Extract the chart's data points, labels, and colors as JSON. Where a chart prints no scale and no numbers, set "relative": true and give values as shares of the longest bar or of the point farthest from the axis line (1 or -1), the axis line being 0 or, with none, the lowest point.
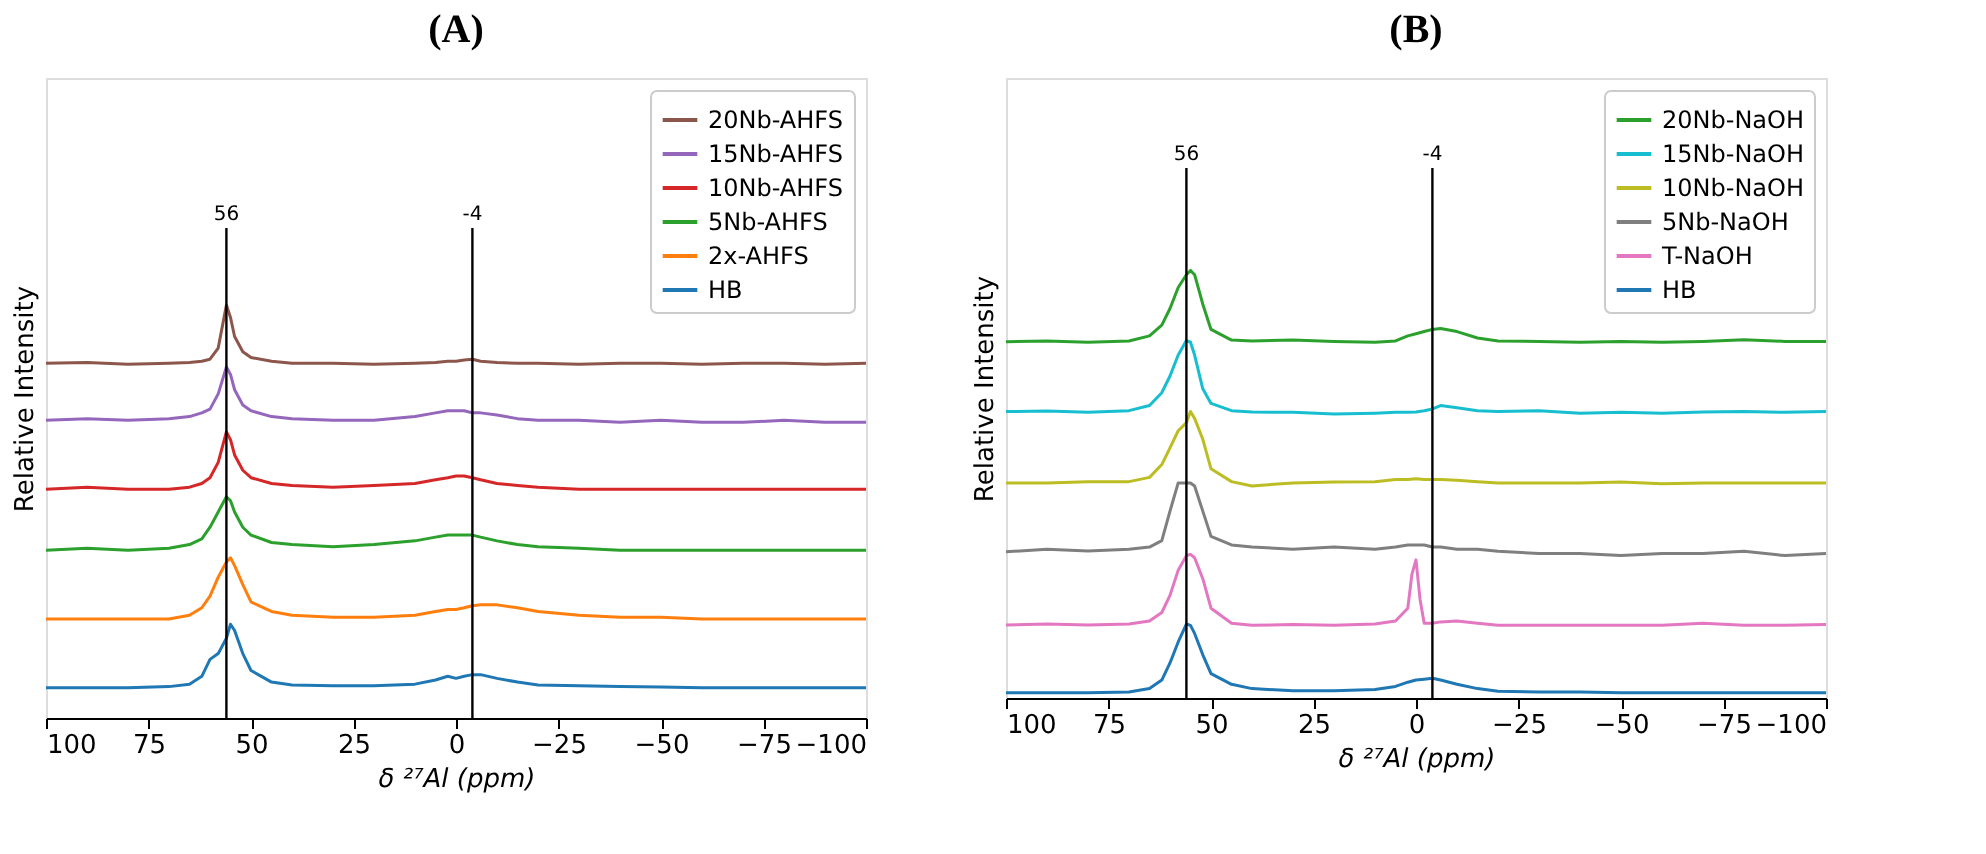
{
  "chart_data": [
    {
      "type": "line",
      "title": "(A)",
      "xlabel": "δ ²⁷Al (ppm)",
      "ylabel": "Relative Intensity",
      "relative": true,
      "legend": "top right",
      "grid": false,
      "xlim": [
        100,
        -100
      ],
      "xticks": [
        100,
        75,
        50,
        25,
        0,
        -25,
        -50,
        -75,
        -100
      ],
      "x": [
        100,
        90,
        80,
        70,
        65,
        62,
        60,
        58,
        56,
        55,
        54,
        52,
        50,
        45,
        40,
        30,
        20,
        10,
        5,
        2,
        0,
        -2,
        -4,
        -6,
        -10,
        -15,
        -20,
        -30,
        -40,
        -50,
        -60,
        -70,
        -80,
        -90,
        -100
      ],
      "ref_lines": [
        {
          "axis": "x",
          "value": 56,
          "label": "56",
          "color": "#000000"
        },
        {
          "axis": "x",
          "value": -4,
          "label": "-4",
          "color": "#000000"
        }
      ],
      "series": [
        {
          "name": "20Nb-AHFS",
          "color": "#8c564b",
          "values": [
            0.859,
            0.861,
            0.857,
            0.859,
            0.861,
            0.864,
            0.869,
            0.896,
            1.0,
            0.97,
            0.924,
            0.887,
            0.873,
            0.864,
            0.859,
            0.859,
            0.857,
            0.859,
            0.861,
            0.864,
            0.864,
            0.867,
            0.869,
            0.864,
            0.861,
            0.859,
            0.859,
            0.857,
            0.859,
            0.859,
            0.857,
            0.859,
            0.859,
            0.857,
            0.859
          ]
        },
        {
          "name": "15Nb-AHFS",
          "color": "#9467bd",
          "values": [
            0.721,
            0.725,
            0.721,
            0.725,
            0.73,
            0.739,
            0.748,
            0.785,
            0.85,
            0.832,
            0.795,
            0.758,
            0.744,
            0.73,
            0.725,
            0.721,
            0.721,
            0.73,
            0.739,
            0.744,
            0.744,
            0.744,
            0.739,
            0.739,
            0.734,
            0.725,
            0.721,
            0.721,
            0.716,
            0.721,
            0.716,
            0.716,
            0.721,
            0.716,
            0.716
          ]
        },
        {
          "name": "10Nb-AHFS",
          "color": "#d62728",
          "values": [
            0.554,
            0.559,
            0.554,
            0.554,
            0.559,
            0.568,
            0.582,
            0.619,
            0.693,
            0.674,
            0.637,
            0.6,
            0.582,
            0.568,
            0.563,
            0.559,
            0.563,
            0.568,
            0.577,
            0.582,
            0.586,
            0.586,
            0.582,
            0.577,
            0.568,
            0.563,
            0.559,
            0.554,
            0.554,
            0.554,
            0.554,
            0.554,
            0.554,
            0.554,
            0.554
          ]
        },
        {
          "name": "5Nb-AHFS",
          "color": "#2ca02c",
          "values": [
            0.406,
            0.411,
            0.406,
            0.411,
            0.42,
            0.434,
            0.462,
            0.499,
            0.536,
            0.526,
            0.499,
            0.462,
            0.443,
            0.425,
            0.42,
            0.415,
            0.42,
            0.429,
            0.438,
            0.443,
            0.443,
            0.443,
            0.443,
            0.438,
            0.429,
            0.42,
            0.415,
            0.411,
            0.406,
            0.406,
            0.406,
            0.406,
            0.406,
            0.406,
            0.406
          ]
        },
        {
          "name": "2x-AHFS",
          "color": "#ff7f0e",
          "values": [
            0.24,
            0.24,
            0.24,
            0.24,
            0.249,
            0.267,
            0.295,
            0.341,
            0.378,
            0.388,
            0.369,
            0.323,
            0.281,
            0.258,
            0.249,
            0.244,
            0.244,
            0.249,
            0.258,
            0.263,
            0.263,
            0.267,
            0.272,
            0.274,
            0.274,
            0.267,
            0.258,
            0.249,
            0.244,
            0.244,
            0.24,
            0.24,
            0.24,
            0.24,
            0.24
          ]
        },
        {
          "name": "HB",
          "color": "#1f77b4",
          "values": [
            0.073,
            0.073,
            0.073,
            0.076,
            0.082,
            0.101,
            0.142,
            0.156,
            0.193,
            0.227,
            0.212,
            0.156,
            0.115,
            0.087,
            0.08,
            0.078,
            0.078,
            0.082,
            0.092,
            0.101,
            0.096,
            0.101,
            0.105,
            0.105,
            0.096,
            0.087,
            0.08,
            0.078,
            0.076,
            0.075,
            0.073,
            0.073,
            0.073,
            0.073,
            0.073
          ]
        }
      ]
    },
    {
      "type": "line",
      "title": "(B)",
      "xlabel": "δ ²⁷Al (ppm)",
      "ylabel": "Relative Intensity",
      "relative": true,
      "legend": "top right",
      "grid": false,
      "xlim": [
        100,
        -100
      ],
      "xticks": [
        100,
        75,
        50,
        25,
        0,
        -25,
        -50,
        -75,
        -100
      ],
      "x": [
        100,
        90,
        80,
        70,
        65,
        62,
        60,
        58,
        56,
        55,
        54,
        52,
        50,
        45,
        40,
        30,
        20,
        10,
        5,
        2,
        0,
        -2,
        -4,
        -6,
        -10,
        -15,
        -20,
        -30,
        -40,
        -50,
        -60,
        -70,
        -80,
        -90,
        -100
      ],
      "ref_lines": [
        {
          "axis": "x",
          "value": 56,
          "label": "56",
          "color": "#000000"
        },
        {
          "axis": "x",
          "value": -4,
          "label": "-4",
          "color": "#000000"
        }
      ],
      "series": [
        {
          "name": "20Nb-NaOH",
          "color": "#2ca02c",
          "values": [
            0.833,
            0.835,
            0.832,
            0.835,
            0.847,
            0.872,
            0.911,
            0.96,
            0.99,
            1.0,
            0.99,
            0.921,
            0.862,
            0.837,
            0.835,
            0.837,
            0.834,
            0.832,
            0.835,
            0.847,
            0.852,
            0.857,
            0.862,
            0.864,
            0.857,
            0.842,
            0.835,
            0.834,
            0.832,
            0.834,
            0.832,
            0.834,
            0.838,
            0.834,
            0.834
          ]
        },
        {
          "name": "15Nb-NaOH",
          "color": "#17becf",
          "values": [
            0.67,
            0.671,
            0.668,
            0.672,
            0.684,
            0.714,
            0.753,
            0.802,
            0.836,
            0.832,
            0.802,
            0.723,
            0.689,
            0.672,
            0.669,
            0.668,
            0.664,
            0.666,
            0.668,
            0.668,
            0.669,
            0.672,
            0.676,
            0.684,
            0.679,
            0.672,
            0.67,
            0.672,
            0.666,
            0.668,
            0.666,
            0.669,
            0.67,
            0.668,
            0.67
          ]
        },
        {
          "name": "10Nb-NaOH",
          "color": "#bcbd22",
          "values": [
            0.503,
            0.503,
            0.506,
            0.506,
            0.516,
            0.546,
            0.585,
            0.625,
            0.644,
            0.67,
            0.654,
            0.605,
            0.536,
            0.506,
            0.496,
            0.503,
            0.505,
            0.506,
            0.511,
            0.511,
            0.513,
            0.511,
            0.511,
            0.511,
            0.509,
            0.506,
            0.503,
            0.503,
            0.503,
            0.505,
            0.501,
            0.503,
            0.503,
            0.503,
            0.503
          ]
        },
        {
          "name": "5Nb-NaOH",
          "color": "#7f7f7f",
          "values": [
            0.342,
            0.348,
            0.344,
            0.348,
            0.353,
            0.368,
            0.437,
            0.503,
            0.503,
            0.503,
            0.496,
            0.437,
            0.378,
            0.358,
            0.353,
            0.348,
            0.353,
            0.348,
            0.353,
            0.358,
            0.358,
            0.358,
            0.353,
            0.353,
            0.348,
            0.348,
            0.343,
            0.338,
            0.338,
            0.333,
            0.338,
            0.338,
            0.343,
            0.333,
            0.338
          ]
        },
        {
          "name": "T-NaOH",
          "color": "#e377c2",
          "x": [
            100,
            90,
            80,
            70,
            65,
            62,
            60,
            58,
            56,
            55,
            54,
            52,
            50,
            45,
            40,
            30,
            20,
            10,
            5,
            2,
            1,
            0,
            -1,
            -2,
            -4,
            -6,
            -10,
            -15,
            -20,
            -30,
            -40,
            -50,
            -60,
            -70,
            -80,
            -90,
            -100
          ],
          "values": [
            0.171,
            0.173,
            0.171,
            0.173,
            0.18,
            0.2,
            0.24,
            0.299,
            0.333,
            0.336,
            0.328,
            0.279,
            0.21,
            0.175,
            0.17,
            0.172,
            0.17,
            0.173,
            0.18,
            0.21,
            0.289,
            0.323,
            0.23,
            0.175,
            0.175,
            0.178,
            0.18,
            0.175,
            0.17,
            0.17,
            0.17,
            0.17,
            0.17,
            0.175,
            0.17,
            0.17,
            0.172
          ]
        },
        {
          "name": "HB",
          "color": "#1f77b4",
          "values": [
            0.012,
            0.012,
            0.012,
            0.014,
            0.022,
            0.042,
            0.082,
            0.131,
            0.173,
            0.17,
            0.151,
            0.101,
            0.057,
            0.032,
            0.022,
            0.017,
            0.017,
            0.02,
            0.027,
            0.037,
            0.042,
            0.044,
            0.046,
            0.042,
            0.032,
            0.022,
            0.016,
            0.014,
            0.014,
            0.012,
            0.012,
            0.012,
            0.012,
            0.012,
            0.012
          ]
        }
      ]
    }
  ]
}
